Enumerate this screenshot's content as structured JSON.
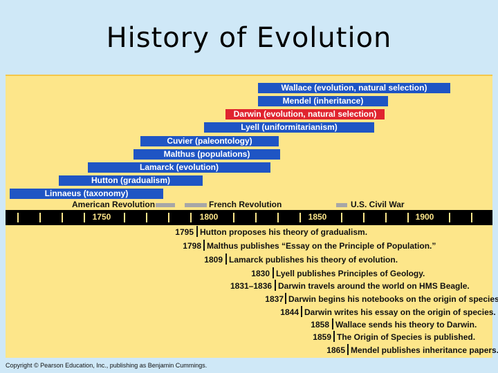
{
  "title": "History of Evolution",
  "people": [
    {
      "label": "Wallace (evolution, natural selection)",
      "color": "#1f55c4"
    },
    {
      "label": "Mendel (inheritance)",
      "color": "#1f55c4"
    },
    {
      "label": "Darwin (evolution, natural selection)",
      "color": "#e0242f"
    },
    {
      "label": "Lyell (uniformitarianism)",
      "color": "#1f55c4"
    },
    {
      "label": "Cuvier (paleontology)",
      "color": "#1f55c4"
    },
    {
      "label": "Malthus (populations)",
      "color": "#1f55c4"
    },
    {
      "label": "Lamarck (evolution)",
      "color": "#1f55c4"
    },
    {
      "label": "Hutton (gradualism)",
      "color": "#1f55c4"
    },
    {
      "label": "Linnaeus (taxonomy)",
      "color": "#1f55c4"
    }
  ],
  "revolutions": [
    {
      "label": "American Revolution"
    },
    {
      "label": "French Revolution"
    },
    {
      "label": "U.S. Civil War"
    }
  ],
  "axis": {
    "years": [
      "1750",
      "1800",
      "1850",
      "1900"
    ]
  },
  "events": [
    {
      "year": "1795",
      "text": "Hutton proposes his theory of gradualism."
    },
    {
      "year": "1798",
      "text": "Malthus publishes “Essay on the Principle of Population.”"
    },
    {
      "year": "1809",
      "text": "Lamarck publishes his theory of evolution."
    },
    {
      "year": "1830",
      "text": "Lyell publishes Principles of Geology."
    },
    {
      "year": "1831–1836",
      "text": "Darwin travels around the world on HMS Beagle."
    },
    {
      "year": "1837",
      "text": "Darwin begins his notebooks on the origin of species."
    },
    {
      "year": "1844",
      "text": "Darwin writes his essay on the origin of species."
    },
    {
      "year": "1858",
      "text": "Wallace sends his theory to Darwin."
    },
    {
      "year": "1859",
      "text": "The Origin of Species is published."
    },
    {
      "year": "1865",
      "text": "Mendel publishes inheritance papers."
    }
  ],
  "copyright": "Copyright © Pearson Education, Inc., publishing as Benjamin Cummings."
}
